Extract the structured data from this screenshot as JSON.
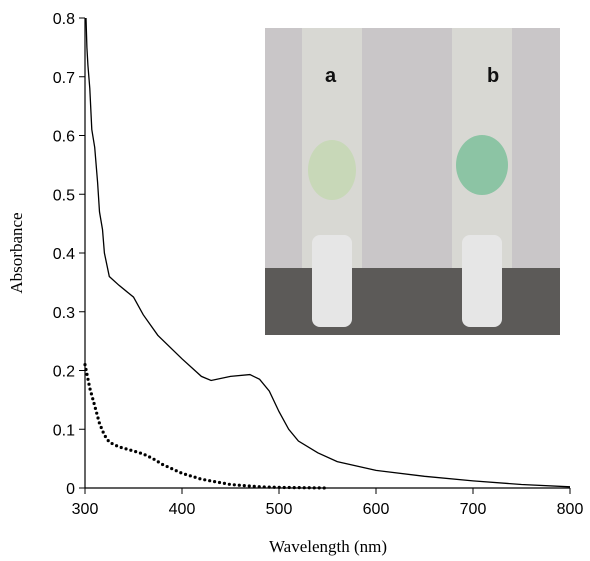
{
  "chart_data": {
    "type": "line",
    "x_label": "Wavelength (nm)",
    "y_label": "Absorbance",
    "xlim": [
      300,
      800
    ],
    "ylim": [
      0,
      0.8
    ],
    "xticks": [
      300,
      400,
      500,
      600,
      700,
      800
    ],
    "yticks": [
      0,
      0.1,
      0.2,
      0.3,
      0.4,
      0.5,
      0.6,
      0.7,
      0.8
    ],
    "annotations": [
      "a",
      "b"
    ],
    "series": [
      {
        "color": "#000000",
        "style": "solid",
        "x": [
          301,
          302,
          303,
          305,
          307,
          310,
          313,
          315,
          318,
          320,
          325,
          335,
          350,
          360,
          375,
          400,
          420,
          430,
          450,
          470,
          480,
          490,
          500,
          510,
          520,
          540,
          560,
          600,
          650,
          700,
          750,
          800
        ],
        "values": [
          0.8,
          0.75,
          0.72,
          0.68,
          0.61,
          0.58,
          0.52,
          0.47,
          0.44,
          0.4,
          0.36,
          0.345,
          0.325,
          0.295,
          0.26,
          0.22,
          0.19,
          0.183,
          0.19,
          0.193,
          0.185,
          0.165,
          0.13,
          0.1,
          0.08,
          0.06,
          0.045,
          0.03,
          0.02,
          0.012,
          0.006,
          0.002
        ]
      },
      {
        "color": "#000000",
        "style": "dotted",
        "x": [
          300,
          305,
          310,
          315,
          320,
          325,
          335,
          350,
          360,
          370,
          380,
          400,
          420,
          450,
          480,
          500,
          550
        ],
        "values": [
          0.21,
          0.17,
          0.14,
          0.11,
          0.09,
          0.078,
          0.07,
          0.063,
          0.058,
          0.05,
          0.04,
          0.025,
          0.015,
          0.006,
          0.002,
          0.001,
          0
        ]
      }
    ]
  }
}
